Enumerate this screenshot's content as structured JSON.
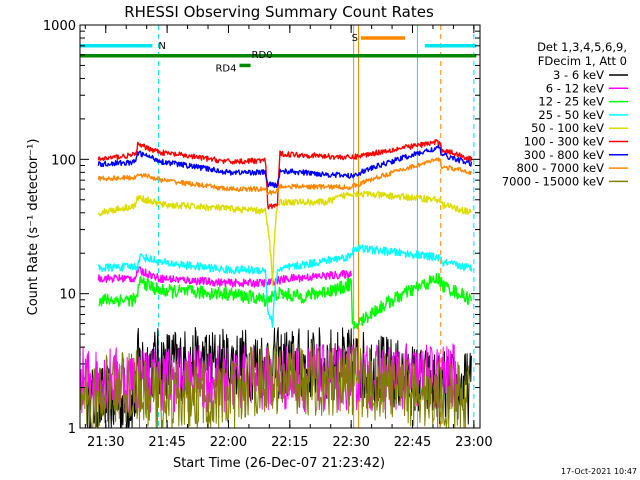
{
  "chart_data": {
    "type": "line",
    "title": "RHESSI Observing Summary Count Rates",
    "xlabel": "Start Time (26-Dec-07 21:23:42)",
    "ylabel": "Count Rate (s⁻¹ detector⁻¹)",
    "yscale": "log",
    "xlim": [
      21.395,
      23.025
    ],
    "ylim": [
      1,
      1000
    ],
    "x_ticks": [
      {
        "value": 21.5,
        "label": "21:30"
      },
      {
        "value": 21.75,
        "label": "21:45"
      },
      {
        "value": 22.0,
        "label": "22:00"
      },
      {
        "value": 22.25,
        "label": "22:15"
      },
      {
        "value": 22.5,
        "label": "22:30"
      },
      {
        "value": 22.75,
        "label": "22:45"
      },
      {
        "value": 23.0,
        "label": "23:00"
      }
    ],
    "y_ticks": [
      {
        "value": 1,
        "label": "1"
      },
      {
        "value": 10,
        "label": "10"
      },
      {
        "value": 100,
        "label": "100"
      },
      {
        "value": 1000,
        "label": "1000"
      }
    ],
    "legend_header": [
      "Det 1,3,4,5,6,9,",
      "FDecim 1, Att 0"
    ],
    "timestamp": "17-Oct-2021 10:47",
    "markers": [
      {
        "label": "N",
        "color": "#00e5ee",
        "x": [
          [
            21.395,
            21.69
          ],
          [
            22.8,
            23.01
          ]
        ],
        "y": 700
      },
      {
        "label": "S",
        "color": "#ff8800",
        "x": [
          [
            22.54,
            22.72
          ]
        ],
        "y": 800
      },
      {
        "label": "RD0",
        "color": "#008800",
        "x": [
          [
            21.395,
            23.01
          ]
        ],
        "y": 590
      },
      {
        "label": "RD4",
        "color": "#008800",
        "x": [
          [
            22.045,
            22.09
          ]
        ],
        "y": 500
      }
    ],
    "vertical_lines": [
      {
        "x": 21.715,
        "color": "#00e5ee",
        "style": "dashed"
      },
      {
        "x": 22.51,
        "color": "#ff8800",
        "style": "solid"
      },
      {
        "x": 22.53,
        "color": "#ff8800",
        "style": "solid"
      },
      {
        "x": 22.77,
        "color": "#00e5ee",
        "style": "solid"
      },
      {
        "x": 22.865,
        "color": "#ff8800",
        "style": "dashed"
      },
      {
        "x": 23.0,
        "color": "#00e5ee",
        "style": "dashed"
      }
    ],
    "series": [
      {
        "name": "3 - 6 keV",
        "color": "#000000",
        "style": "noisy",
        "noise": 0.55,
        "x": [
          21.425,
          21.62,
          21.63,
          21.74,
          22.21,
          22.5,
          22.86,
          22.99
        ],
        "y": [
          1.6,
          1.6,
          3.0,
          3.0,
          3.0,
          3.0,
          2.0,
          2.0
        ]
      },
      {
        "name": "6 - 12 keV",
        "color": "#ff00ff",
        "style": "noisy",
        "noise": 0.5,
        "x": [
          21.395,
          21.47,
          22.85,
          22.93
        ],
        "y": [
          2.3,
          2.3,
          2.4,
          2.4
        ]
      },
      {
        "name": "6 - 12 keV",
        "color": "#ff00ff",
        "style": "line",
        "noise": 0.03,
        "x": [
          21.47,
          21.62,
          21.63,
          21.72,
          22.0,
          22.16,
          22.19,
          22.26,
          22.5
        ],
        "y": [
          13.0,
          13.0,
          15.0,
          13.0,
          12.0,
          12.0,
          12.5,
          13.0,
          14.0
        ]
      },
      {
        "name": "12 - 25 keV",
        "color": "#00ff00",
        "style": "line",
        "noise": 0.05,
        "x": [
          21.47,
          21.63,
          21.635,
          21.72,
          22.0,
          22.15,
          22.2,
          22.3,
          22.46,
          22.5,
          22.505,
          22.86,
          22.87,
          22.99
        ],
        "y": [
          9.0,
          9.0,
          12.5,
          10.5,
          10.0,
          9.0,
          10.0,
          9.5,
          11.0,
          12.0,
          5.5,
          13.0,
          11.5,
          9.0
        ]
      },
      {
        "name": "25 - 50 keV",
        "color": "#00ffff",
        "style": "line",
        "noise": 0.03,
        "x": [
          21.47,
          21.63,
          21.64,
          21.73,
          22.0,
          22.15,
          22.16,
          22.18,
          22.2,
          22.5,
          22.51,
          22.86,
          22.87,
          22.99
        ],
        "y": [
          15.5,
          16.0,
          19.0,
          17.0,
          15.0,
          15.0,
          7.5,
          6.0,
          15.0,
          19.0,
          22.0,
          18.5,
          17.0,
          15.5
        ]
      },
      {
        "name": "50 - 100 keV",
        "color": "#dddd00",
        "style": "line",
        "noise": 0.025,
        "x": [
          21.47,
          21.62,
          21.63,
          21.73,
          22.0,
          22.15,
          22.18,
          22.2,
          22.4,
          22.5,
          22.86,
          22.87,
          22.99
        ],
        "y": [
          40.0,
          45.0,
          52.0,
          46.0,
          43.0,
          41.0,
          12.0,
          48.0,
          48.0,
          56.0,
          50.0,
          46.0,
          40.0
        ]
      },
      {
        "name": "100 - 300 keV",
        "color": "#ff0000",
        "style": "line",
        "noise": 0.02,
        "x": [
          21.47,
          21.62,
          21.63,
          21.73,
          22.0,
          22.15,
          22.16,
          22.2,
          22.21,
          22.5,
          22.86,
          22.87,
          22.99
        ],
        "y": [
          100.0,
          108.0,
          128.0,
          112.0,
          96.0,
          98.0,
          44.0,
          46.0,
          110.0,
          103.0,
          135.0,
          118.0,
          100.0
        ]
      },
      {
        "name": "300 - 800 keV",
        "color": "#0000ff",
        "style": "line",
        "noise": 0.02,
        "x": [
          21.47,
          21.62,
          21.63,
          21.73,
          22.0,
          22.15,
          22.16,
          22.2,
          22.21,
          22.5,
          22.86,
          22.87,
          22.99
        ],
        "y": [
          92.0,
          95.0,
          112.0,
          96.0,
          80.0,
          80.0,
          65.0,
          64.0,
          82.0,
          75.0,
          122.0,
          108.0,
          92.0
        ]
      },
      {
        "name": "800 - 7000 keV",
        "color": "#ff8800",
        "style": "line",
        "noise": 0.018,
        "x": [
          21.47,
          21.62,
          21.63,
          21.73,
          22.0,
          22.15,
          22.16,
          22.2,
          22.21,
          22.5,
          22.86,
          22.87,
          22.99
        ],
        "y": [
          72.0,
          73.0,
          78.0,
          70.0,
          60.0,
          60.0,
          56.0,
          58.0,
          63.0,
          62.0,
          100.0,
          88.0,
          80.0
        ]
      },
      {
        "name": "7000 - 15000 keV",
        "color": "#808000",
        "style": "noisy",
        "noise": 0.55,
        "x": [
          21.395,
          21.47,
          21.5,
          21.63,
          21.64,
          22.07,
          22.08,
          22.5,
          22.87,
          22.98
        ],
        "y": [
          1.5,
          1.5,
          2.0,
          2.0,
          1.7,
          1.7,
          2.3,
          2.3,
          1.7,
          1.7
        ]
      }
    ],
    "legend": [
      {
        "label": "3 - 6 keV",
        "color": "#000000"
      },
      {
        "label": "6 - 12 keV",
        "color": "#ff00ff"
      },
      {
        "label": "12 - 25 keV",
        "color": "#00ff00"
      },
      {
        "label": "25 - 50 keV",
        "color": "#00ffff"
      },
      {
        "label": "50 - 100 keV",
        "color": "#dddd00"
      },
      {
        "label": "100 - 300 keV",
        "color": "#ff0000"
      },
      {
        "label": "300 - 800 keV",
        "color": "#0000ff"
      },
      {
        "label": "800 - 7000 keV",
        "color": "#ff8800"
      },
      {
        "label": "7000 - 15000 keV",
        "color": "#808000"
      }
    ]
  }
}
